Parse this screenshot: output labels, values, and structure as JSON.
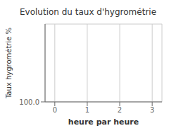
{
  "chart_data": {
    "type": "line",
    "title": "Evolution du taux d'hygrométrie",
    "xlabel": "heure par heure",
    "ylabel": "Taux hygrométrie %",
    "xlim": [
      -0.3,
      3.3
    ],
    "xticks": [
      0,
      1,
      2,
      3
    ],
    "ylim": [
      100.0,
      101.5
    ],
    "yticks": [
      {
        "value": 100.0,
        "label": "100.0"
      }
    ],
    "grid": true
  }
}
